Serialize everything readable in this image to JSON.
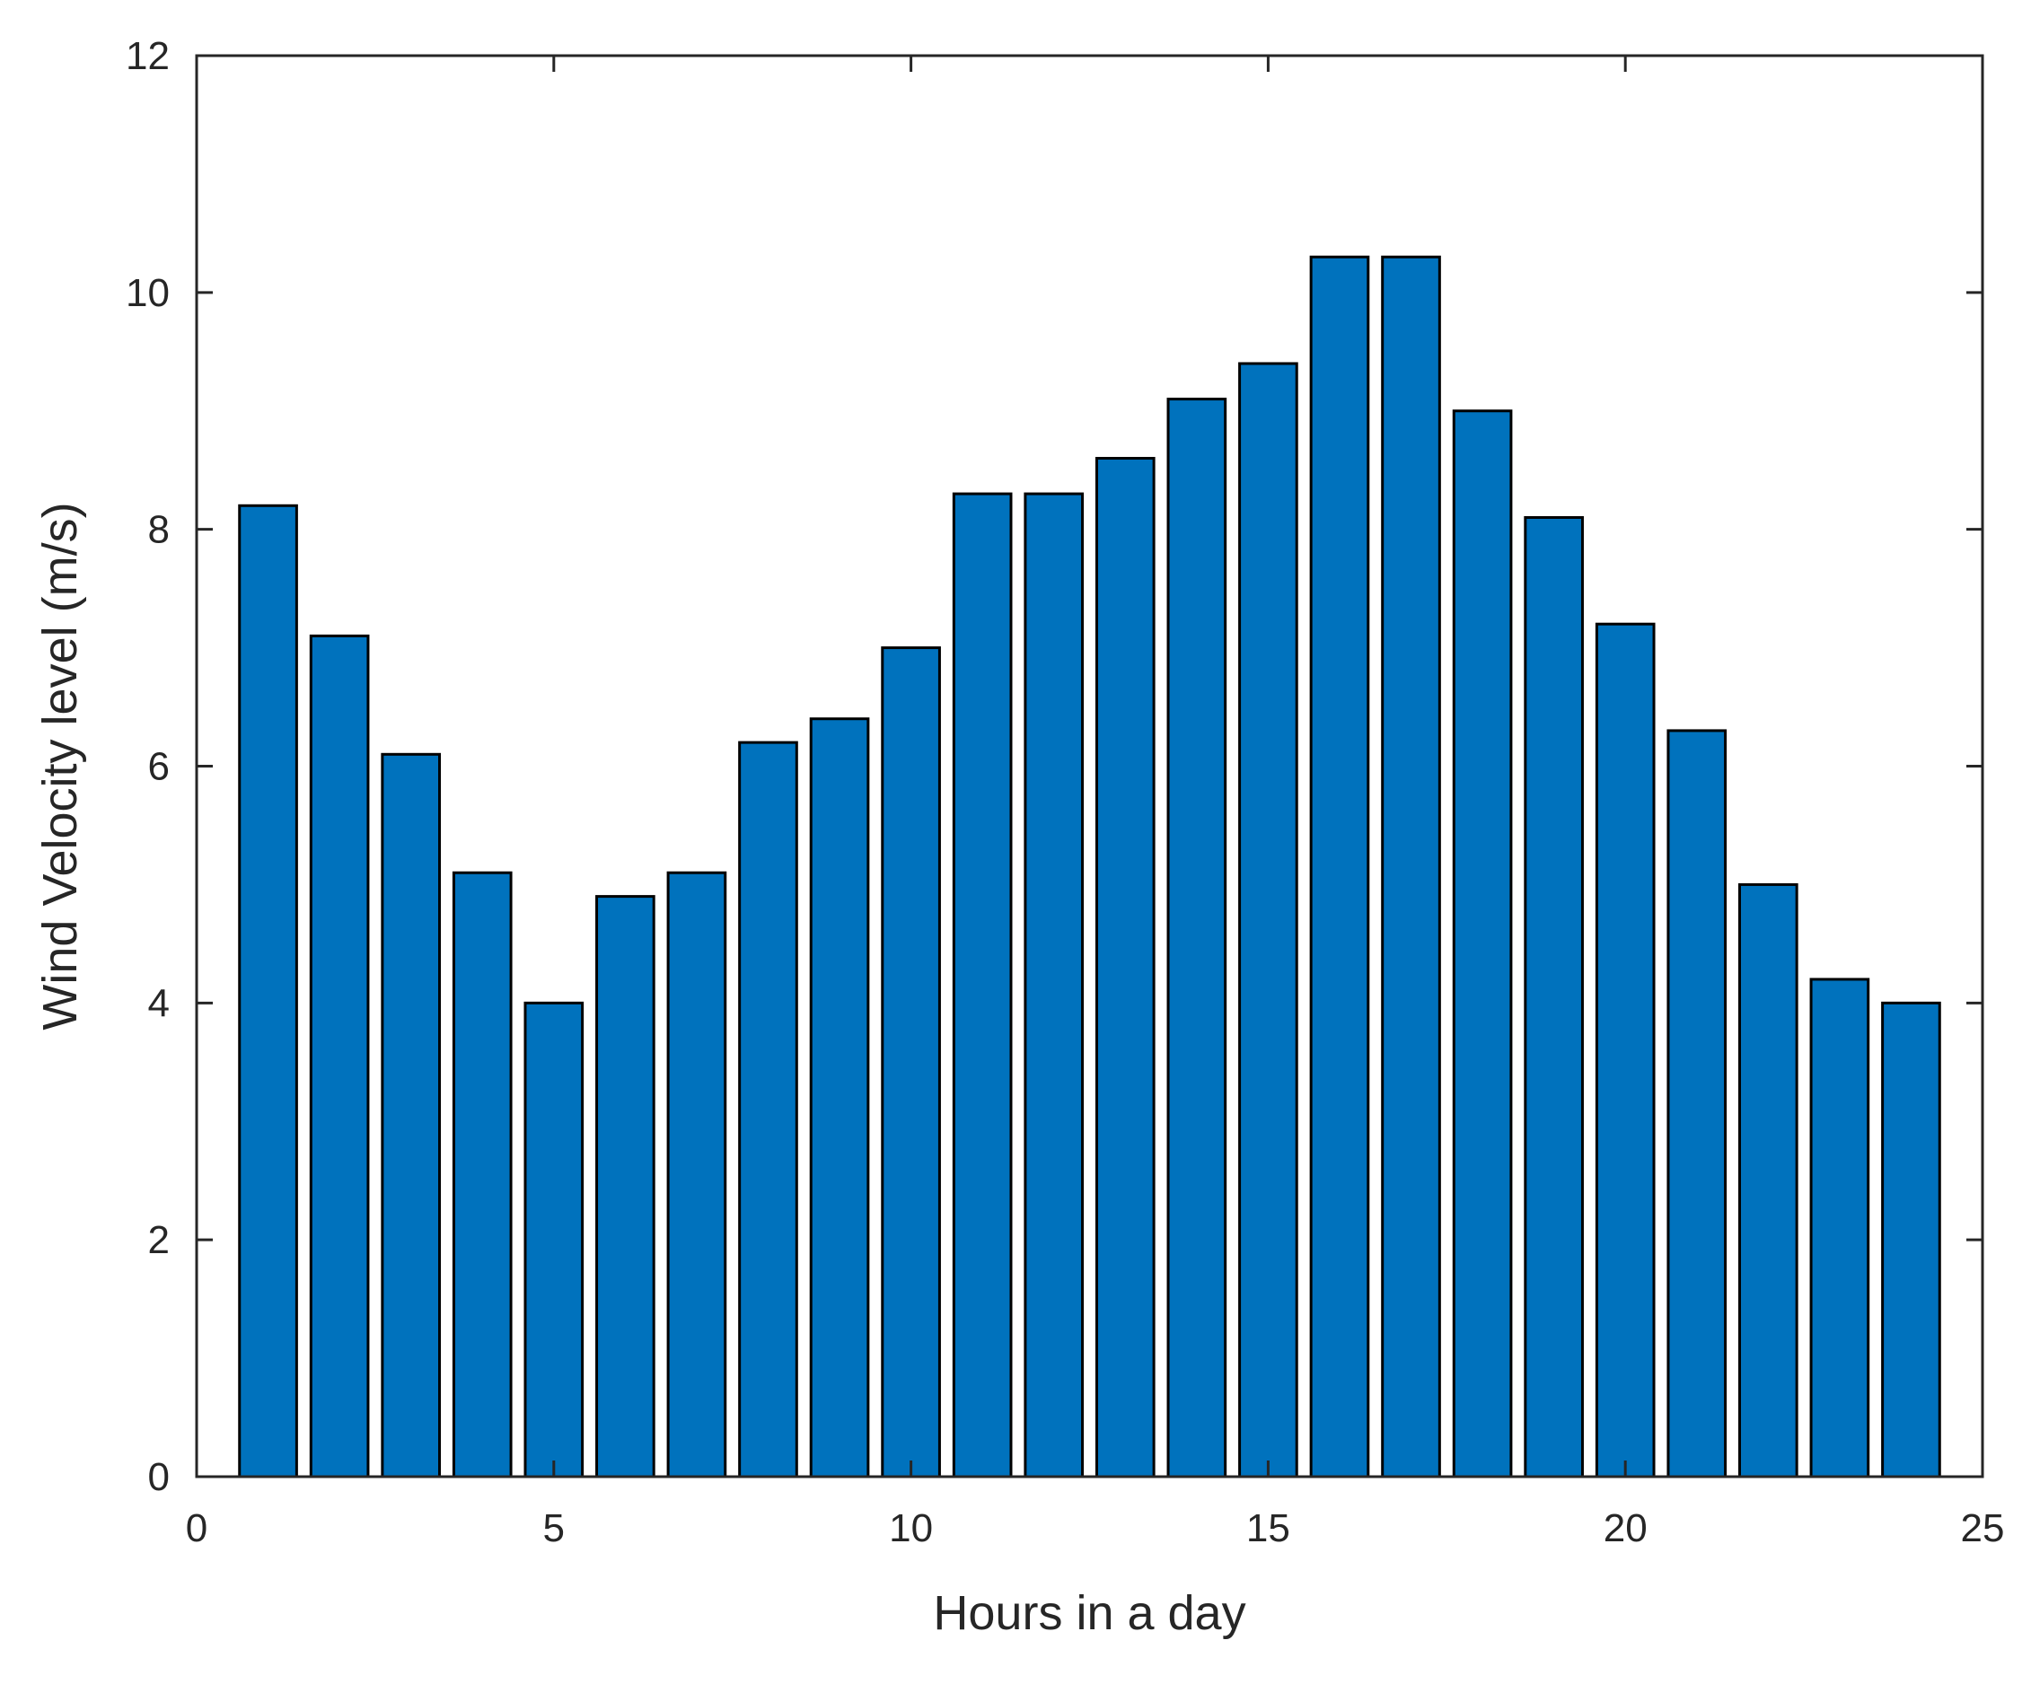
{
  "chart_data": {
    "type": "bar",
    "xlabel": "Hours in a day",
    "ylabel": "Wind Velocity level (m/s)",
    "xlim": [
      0,
      25
    ],
    "ylim": [
      0,
      12
    ],
    "xticks": [
      0,
      5,
      10,
      15,
      20,
      25
    ],
    "yticks": [
      0,
      2,
      4,
      6,
      8,
      10,
      12
    ],
    "grid": false,
    "bar_color": "#0072BD",
    "bar_edge_color": "#000000",
    "categories": [
      1,
      2,
      3,
      4,
      5,
      6,
      7,
      8,
      9,
      10,
      11,
      12,
      13,
      14,
      15,
      16,
      17,
      18,
      19,
      20,
      21,
      22,
      23,
      24
    ],
    "values": [
      8.2,
      7.1,
      6.1,
      5.1,
      4.0,
      4.9,
      5.1,
      6.2,
      6.4,
      7.0,
      8.3,
      8.3,
      8.6,
      9.1,
      9.4,
      10.3,
      10.3,
      9.0,
      8.1,
      7.2,
      6.3,
      5.0,
      4.2,
      4.0
    ]
  }
}
